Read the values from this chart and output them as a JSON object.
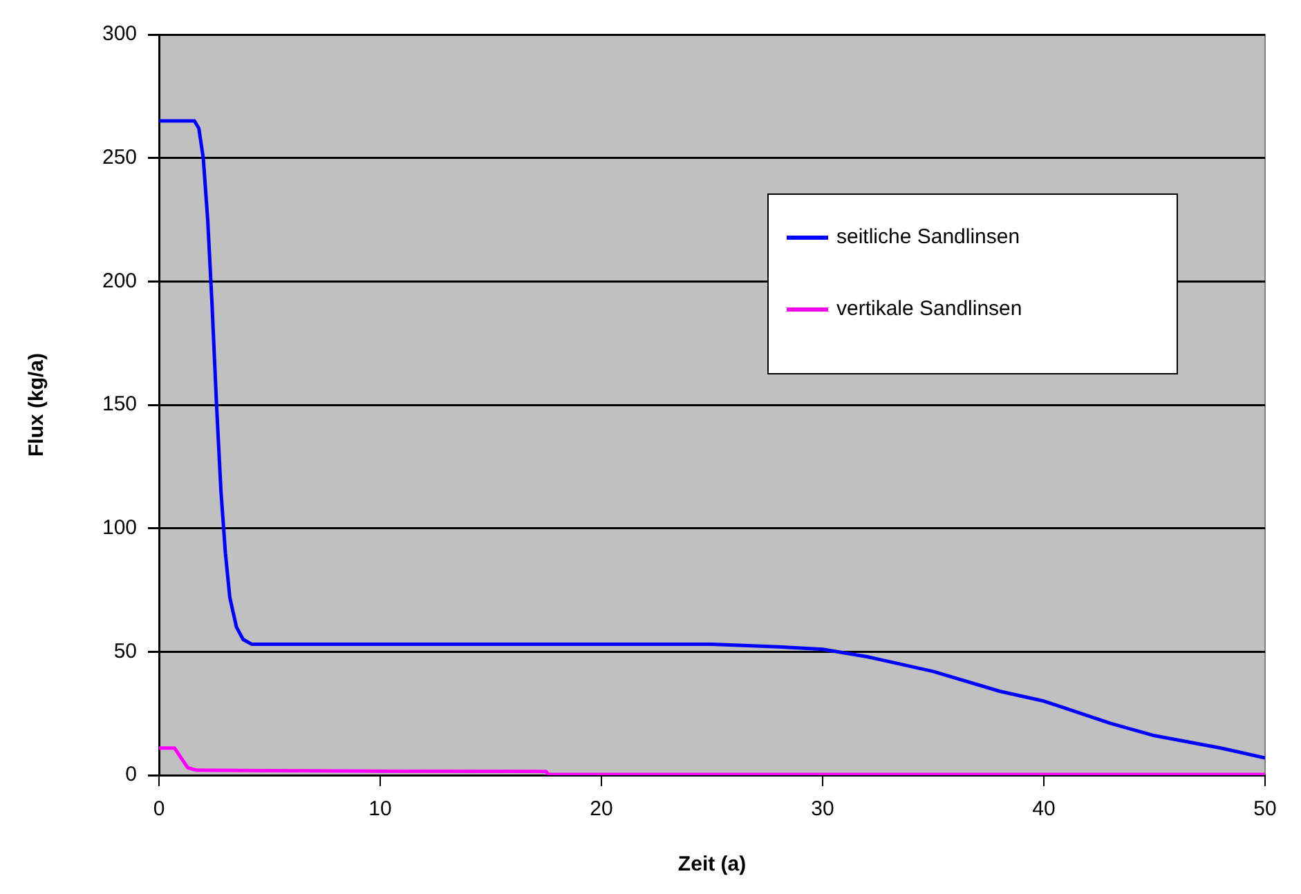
{
  "chart_data": {
    "type": "line",
    "xlabel": "Zeit (a)",
    "ylabel": "Flux (kg/a)",
    "xlim": [
      0,
      50
    ],
    "xticks": [
      0,
      10,
      20,
      30,
      40,
      50
    ],
    "ylim": [
      0,
      300
    ],
    "yticks": [
      0,
      50,
      100,
      150,
      200,
      250,
      300
    ],
    "grid": "y",
    "legend": "right",
    "marker": "none",
    "line_style": "solid",
    "series": [
      {
        "name": "seitliche Sandlinsen",
        "color": "#0000ff",
        "x": [
          0,
          1.0,
          1.6,
          1.8,
          2.0,
          2.2,
          2.4,
          2.6,
          2.8,
          3.0,
          3.2,
          3.5,
          3.8,
          4.2,
          5,
          10,
          20,
          25,
          28,
          30,
          32,
          35,
          38,
          40,
          43,
          45,
          48,
          50
        ],
        "values": [
          265,
          265,
          265,
          262,
          250,
          225,
          190,
          150,
          115,
          90,
          72,
          60,
          55,
          53,
          53,
          53,
          53,
          53,
          52,
          51,
          48,
          42,
          34,
          30,
          21,
          16,
          11,
          7
        ]
      },
      {
        "name": "vertikale Sandlinsen",
        "color": "#ff00ff",
        "x": [
          0,
          0.7,
          1.0,
          1.3,
          1.7,
          5,
          10,
          17.5,
          17.6,
          30,
          50
        ],
        "values": [
          11,
          11,
          7,
          3,
          2,
          1.8,
          1.6,
          1.5,
          0.3,
          0.3,
          0.3
        ]
      }
    ]
  }
}
